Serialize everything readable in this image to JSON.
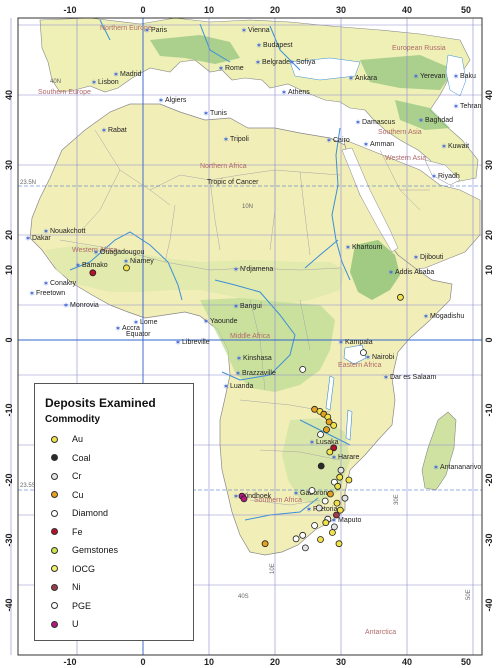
{
  "axes": {
    "lon_ticks": [
      "-10",
      "0",
      "10",
      "20",
      "30",
      "40",
      "50"
    ],
    "lat_ticks": [
      "40",
      "30",
      "20",
      "10",
      "0",
      "-10",
      "-20",
      "-30",
      "-40"
    ]
  },
  "grid_labels": [
    "40N",
    "23.5N",
    "10N",
    "Equator",
    "23.5S",
    "40S",
    "10E",
    "30E",
    "50E"
  ],
  "cities": [
    "Paris",
    "Vienna",
    "Budapest",
    "Madrid",
    "Rome",
    "Belgrade",
    "Sofiya",
    "Ankara",
    "Yerevan",
    "Baku",
    "Lisbon",
    "Algiers",
    "Athens",
    "Tunis",
    "Tehran",
    "Rabat",
    "Tripoli",
    "Damascus",
    "Baghdad",
    "Cairo",
    "Amman",
    "Kuwait",
    "Riyadh",
    "Nouakchott",
    "Dakar",
    "Khartoum",
    "Ouagadougou",
    "Bamako",
    "Niamey",
    "Conakry",
    "Freetown",
    "Monrovia",
    "N'djamena",
    "Addis Ababa",
    "Djibouti",
    "Accra",
    "Lome",
    "Yaounde",
    "Bangui",
    "Mogadishu",
    "Kampala",
    "Nairobi",
    "Libreville",
    "Kinshasa",
    "Brazzaville",
    "Dar es Salaam",
    "Luanda",
    "Lusaka",
    "Harare",
    "Antananarivo",
    "Windhoek",
    "Gaborone",
    "Pretoria",
    "Maputo"
  ],
  "regions": [
    "Northern Europe",
    "Southern Europe",
    "European Russia",
    "Northern Africa",
    "Western Asia",
    "Southern Asia",
    "Western Africa",
    "Middle Africa",
    "Eastern Africa",
    "Southern Africa",
    "Antarctica"
  ],
  "geo_lines": [
    "Tropic of Cancer"
  ],
  "legend": {
    "title": "Deposits Examined",
    "subtitle": "Commodity",
    "items": [
      {
        "label": "Au",
        "color": "#f2e24a"
      },
      {
        "label": "Coal",
        "color": "#2a2a2a"
      },
      {
        "label": "Cr",
        "color": "#e4e4e4"
      },
      {
        "label": "Cu",
        "color": "#e6a21e"
      },
      {
        "label": "Diamond",
        "color": "#ffffff"
      },
      {
        "label": "Fe",
        "color": "#b3122d"
      },
      {
        "label": "Gemstones",
        "color": "#c9e64a"
      },
      {
        "label": "IOCG",
        "color": "#f4ee6a"
      },
      {
        "label": "Ni",
        "color": "#9c3b4a"
      },
      {
        "label": "PGE",
        "color": "#ffffff"
      },
      {
        "label": "U",
        "color": "#b0187a"
      }
    ]
  },
  "colors": {
    "ocean": "#ffffff",
    "land": "#f2eeb8",
    "lowland": "#c9e2a4",
    "highland": "#7db86d",
    "border": "#999999",
    "river": "#3b8fd8",
    "grid": "#8a8ad0"
  },
  "deposits": [
    {
      "c": "Fe",
      "lon": -7.6,
      "lat": 9.6
    },
    {
      "c": "Au",
      "lon": -2.5,
      "lat": 10.3
    },
    {
      "c": "Au",
      "lon": 39.0,
      "lat": 6.1
    },
    {
      "c": "Diamond",
      "lon": 33.4,
      "lat": -1.8
    },
    {
      "c": "Diamond",
      "lon": 24.2,
      "lat": -4.2
    },
    {
      "c": "Cu",
      "lon": 26.0,
      "lat": -9.9
    },
    {
      "c": "Au",
      "lon": 26.8,
      "lat": -10.2
    },
    {
      "c": "Cu",
      "lon": 27.4,
      "lat": -10.6
    },
    {
      "c": "Au",
      "lon": 28.0,
      "lat": -11.0
    },
    {
      "c": "Cu",
      "lon": 28.2,
      "lat": -11.7
    },
    {
      "c": "Au",
      "lon": 28.9,
      "lat": -12.2
    },
    {
      "c": "Cu",
      "lon": 27.8,
      "lat": -12.8
    },
    {
      "c": "Diamond",
      "lon": 26.9,
      "lat": -13.5
    },
    {
      "c": "Fe",
      "lon": 28.9,
      "lat": -15.4
    },
    {
      "c": "Au",
      "lon": 28.3,
      "lat": -16.0
    },
    {
      "c": "Coal",
      "lon": 27.0,
      "lat": -18.0
    },
    {
      "c": "Cr",
      "lon": 30.0,
      "lat": -18.6
    },
    {
      "c": "Au",
      "lon": 29.8,
      "lat": -19.6
    },
    {
      "c": "Au",
      "lon": 31.2,
      "lat": -20.0
    },
    {
      "c": "PGE",
      "lon": 29.0,
      "lat": -20.3
    },
    {
      "c": "Au",
      "lon": 29.5,
      "lat": -20.9
    },
    {
      "c": "Diamond",
      "lon": 25.6,
      "lat": -21.5
    },
    {
      "c": "Cu",
      "lon": 28.4,
      "lat": -22.0
    },
    {
      "c": "Cr",
      "lon": 30.6,
      "lat": -22.6
    },
    {
      "c": "Diamond",
      "lon": 27.6,
      "lat": -23.0
    },
    {
      "c": "Au",
      "lon": 29.4,
      "lat": -23.3
    },
    {
      "c": "Cr",
      "lon": 26.7,
      "lat": -24.0
    },
    {
      "c": "Au",
      "lon": 29.9,
      "lat": -24.3
    },
    {
      "c": "Ni",
      "lon": 29.3,
      "lat": -25.0
    },
    {
      "c": "PGE",
      "lon": 28.0,
      "lat": -25.6
    },
    {
      "c": "Au",
      "lon": 27.7,
      "lat": -26.1
    },
    {
      "c": "Diamond",
      "lon": 26.0,
      "lat": -26.5
    },
    {
      "c": "Cr",
      "lon": 29.0,
      "lat": -26.7
    },
    {
      "c": "Au",
      "lon": 28.7,
      "lat": -27.5
    },
    {
      "c": "Diamond",
      "lon": 24.2,
      "lat": -27.9
    },
    {
      "c": "Diamond",
      "lon": 23.2,
      "lat": -28.4
    },
    {
      "c": "Au",
      "lon": 26.9,
      "lat": -28.5
    },
    {
      "c": "Cu",
      "lon": 18.5,
      "lat": -29.1
    },
    {
      "c": "Au",
      "lon": 29.7,
      "lat": -29.1
    },
    {
      "c": "U",
      "lon": 15.0,
      "lat": -22.3
    },
    {
      "c": "U",
      "lon": 15.3,
      "lat": -22.7
    },
    {
      "c": "Cr",
      "lon": 24.6,
      "lat": -29.7
    }
  ]
}
